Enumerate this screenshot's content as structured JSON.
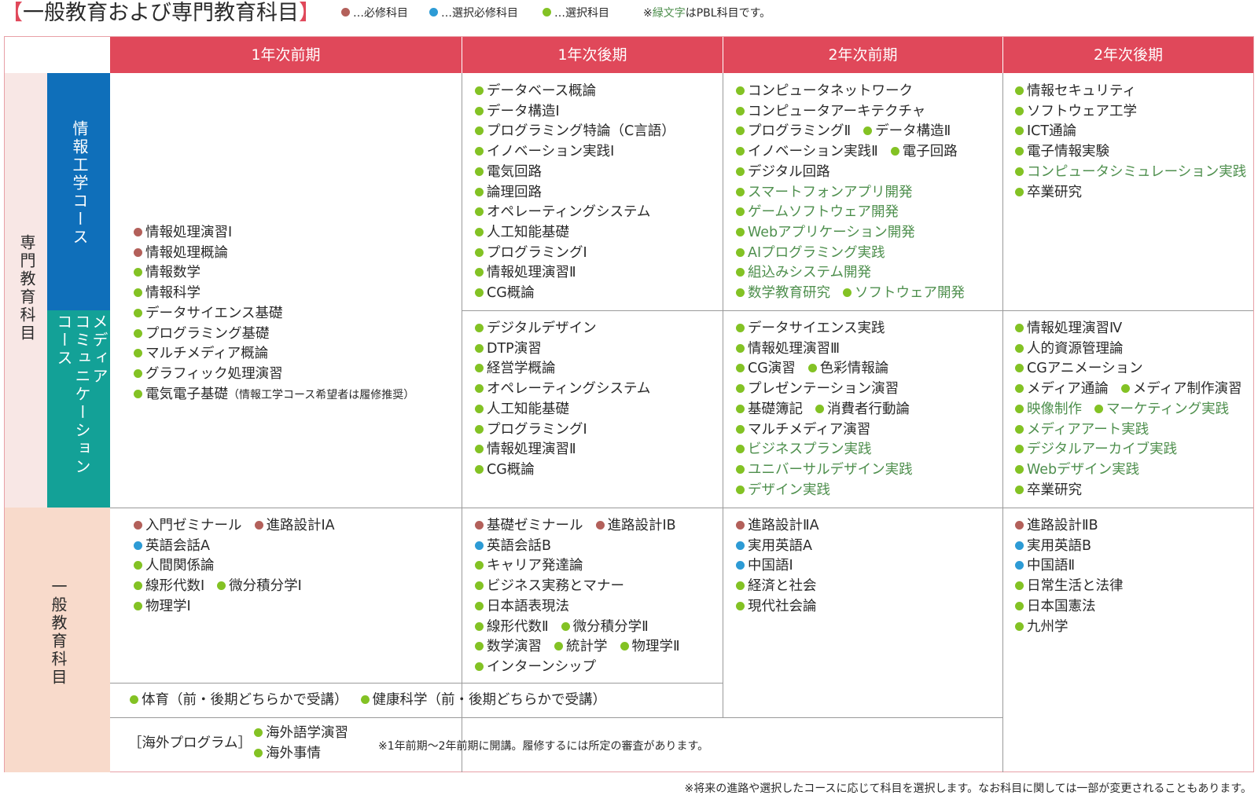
{
  "title": {
    "open": "【",
    "text": "一般教育および専門教育科目",
    "close": "】"
  },
  "legend": {
    "required": "…必修科目",
    "elective_required": "…選択必修科目",
    "elective": "…選択科目",
    "note_prefix": "※",
    "note_green": "緑文字",
    "note_suffix": "はPBL科目です。"
  },
  "colors": {
    "header": "#e0485a",
    "required": "#b3605a",
    "elective_required": "#2d9bd5",
    "elective": "#83c224",
    "pbl_text": "#4e8f4d",
    "info_course": "#0f6fba",
    "media_course": "#13a197"
  },
  "headers": [
    "1年次前期",
    "1年次後期",
    "2年次前期",
    "2年次後期"
  ],
  "row_labels": {
    "professional": "専門教育科目",
    "general": "一般教育科目",
    "info_course": "情報工学コース",
    "media_course_1": "メディア",
    "media_course_2": "コミュニケーション",
    "media_course_3": "コース"
  },
  "professional_common_1a": [
    [
      {
        "t": "情報処理演習Ⅰ",
        "c": "r"
      }
    ],
    [
      {
        "t": "情報処理概論",
        "c": "r"
      }
    ],
    [
      {
        "t": "情報数学",
        "c": "g"
      }
    ],
    [
      {
        "t": "情報科学",
        "c": "g"
      }
    ],
    [
      {
        "t": "データサイエンス基礎",
        "c": "g"
      }
    ],
    [
      {
        "t": "プログラミング基礎",
        "c": "g"
      }
    ],
    [
      {
        "t": "マルチメディア概論",
        "c": "g"
      }
    ],
    [
      {
        "t": "グラフィック処理演習",
        "c": "g"
      }
    ],
    [
      {
        "t": "電気電子基礎",
        "c": "g",
        "s": "（情報工学コース希望者は履修推奨）"
      }
    ]
  ],
  "info_1b": [
    [
      {
        "t": "データベース概論",
        "c": "g"
      }
    ],
    [
      {
        "t": "データ構造Ⅰ",
        "c": "g"
      }
    ],
    [
      {
        "t": "プログラミング特論（C言語）",
        "c": "g"
      }
    ],
    [
      {
        "t": "イノベーション実践Ⅰ",
        "c": "g"
      }
    ],
    [
      {
        "t": "電気回路",
        "c": "g"
      }
    ],
    [
      {
        "t": "論理回路",
        "c": "g"
      }
    ],
    [
      {
        "t": "オペレーティングシステム",
        "c": "g"
      }
    ],
    [
      {
        "t": "人工知能基礎",
        "c": "g"
      }
    ],
    [
      {
        "t": "プログラミングⅠ",
        "c": "g"
      }
    ],
    [
      {
        "t": "情報処理演習Ⅱ",
        "c": "g"
      }
    ],
    [
      {
        "t": "CG概論",
        "c": "g"
      }
    ]
  ],
  "info_2a": [
    [
      {
        "t": "コンピュータネットワーク",
        "c": "g"
      }
    ],
    [
      {
        "t": "コンピュータアーキテクチャ",
        "c": "g"
      }
    ],
    [
      {
        "t": "プログラミングⅡ",
        "c": "g"
      },
      {
        "t": "データ構造Ⅱ",
        "c": "g"
      }
    ],
    [
      {
        "t": "イノベーション実践Ⅱ",
        "c": "g"
      },
      {
        "t": "電子回路",
        "c": "g"
      }
    ],
    [
      {
        "t": "デジタル回路",
        "c": "g"
      }
    ],
    [
      {
        "t": "スマートフォンアプリ開発",
        "c": "g",
        "p": true
      }
    ],
    [
      {
        "t": "ゲームソフトウェア開発",
        "c": "g",
        "p": true
      }
    ],
    [
      {
        "t": "Webアプリケーション開発",
        "c": "g",
        "p": true
      }
    ],
    [
      {
        "t": "AIプログラミング実践",
        "c": "g",
        "p": true
      }
    ],
    [
      {
        "t": "組込みシステム開発",
        "c": "g",
        "p": true
      }
    ],
    [
      {
        "t": "数学教育研究",
        "c": "g",
        "p": true
      },
      {
        "t": "ソフトウェア開発",
        "c": "g",
        "p": true
      }
    ]
  ],
  "info_2b": [
    [
      {
        "t": "情報セキュリティ",
        "c": "g"
      }
    ],
    [
      {
        "t": "ソフトウェア工学",
        "c": "g"
      }
    ],
    [
      {
        "t": "ICT通論",
        "c": "g"
      }
    ],
    [
      {
        "t": "電子情報実験",
        "c": "g"
      }
    ],
    [
      {
        "t": "コンピュータシミュレーション実践",
        "c": "g",
        "p": true
      }
    ],
    [
      {
        "t": "卒業研究",
        "c": "g"
      }
    ]
  ],
  "media_1b": [
    [
      {
        "t": "デジタルデザイン",
        "c": "g"
      }
    ],
    [
      {
        "t": "DTP演習",
        "c": "g"
      }
    ],
    [
      {
        "t": "経営学概論",
        "c": "g"
      }
    ],
    [
      {
        "t": "オペレーティングシステム",
        "c": "g"
      }
    ],
    [
      {
        "t": "人工知能基礎",
        "c": "g"
      }
    ],
    [
      {
        "t": "プログラミングⅠ",
        "c": "g"
      }
    ],
    [
      {
        "t": "情報処理演習Ⅱ",
        "c": "g"
      }
    ],
    [
      {
        "t": "CG概論",
        "c": "g"
      }
    ]
  ],
  "media_2a": [
    [
      {
        "t": "データサイエンス実践",
        "c": "g"
      }
    ],
    [
      {
        "t": "情報処理演習Ⅲ",
        "c": "g"
      }
    ],
    [
      {
        "t": "CG演習",
        "c": "g"
      },
      {
        "t": "色彩情報論",
        "c": "g"
      }
    ],
    [
      {
        "t": "プレゼンテーション演習",
        "c": "g"
      }
    ],
    [
      {
        "t": "基礎簿記",
        "c": "g"
      },
      {
        "t": "消費者行動論",
        "c": "g"
      }
    ],
    [
      {
        "t": "マルチメディア演習",
        "c": "g"
      }
    ],
    [
      {
        "t": "ビジネスプラン実践",
        "c": "g",
        "p": true
      }
    ],
    [
      {
        "t": "ユニバーサルデザイン実践",
        "c": "g",
        "p": true
      }
    ],
    [
      {
        "t": "デザイン実践",
        "c": "g",
        "p": true
      }
    ]
  ],
  "media_2b": [
    [
      {
        "t": "情報処理演習Ⅳ",
        "c": "g"
      }
    ],
    [
      {
        "t": "人的資源管理論",
        "c": "g"
      }
    ],
    [
      {
        "t": "CGアニメーション",
        "c": "g"
      }
    ],
    [
      {
        "t": "メディア通論",
        "c": "g"
      },
      {
        "t": "メディア制作演習",
        "c": "g"
      }
    ],
    [
      {
        "t": "映像制作",
        "c": "g",
        "p": true
      },
      {
        "t": "マーケティング実践",
        "c": "g",
        "p": true
      }
    ],
    [
      {
        "t": "メディアアート実践",
        "c": "g",
        "p": true
      }
    ],
    [
      {
        "t": "デジタルアーカイブ実践",
        "c": "g",
        "p": true
      }
    ],
    [
      {
        "t": "Webデザイン実践",
        "c": "g",
        "p": true
      }
    ],
    [
      {
        "t": "卒業研究",
        "c": "g"
      }
    ]
  ],
  "general_1a": [
    [
      {
        "t": "入門ゼミナール",
        "c": "r"
      },
      {
        "t": "進路設計ⅠA",
        "c": "r"
      }
    ],
    [
      {
        "t": "英語会話A",
        "c": "b"
      }
    ],
    [
      {
        "t": "人間関係論",
        "c": "g"
      }
    ],
    [
      {
        "t": "線形代数Ⅰ",
        "c": "g"
      },
      {
        "t": "微分積分学Ⅰ",
        "c": "g"
      }
    ],
    [
      {
        "t": "物理学Ⅰ",
        "c": "g"
      }
    ]
  ],
  "general_1b": [
    [
      {
        "t": "基礎ゼミナール",
        "c": "r"
      },
      {
        "t": "進路設計ⅠB",
        "c": "r"
      }
    ],
    [
      {
        "t": "英語会話B",
        "c": "b"
      }
    ],
    [
      {
        "t": "キャリア発達論",
        "c": "g"
      }
    ],
    [
      {
        "t": "ビジネス実務とマナー",
        "c": "g"
      }
    ],
    [
      {
        "t": "日本語表現法",
        "c": "g"
      }
    ],
    [
      {
        "t": "線形代数Ⅱ",
        "c": "g"
      },
      {
        "t": "微分積分学Ⅱ",
        "c": "g"
      }
    ],
    [
      {
        "t": "数学演習",
        "c": "g"
      },
      {
        "t": "統計学",
        "c": "g"
      },
      {
        "t": "物理学Ⅱ",
        "c": "g"
      }
    ],
    [
      {
        "t": "インターンシップ",
        "c": "g"
      }
    ]
  ],
  "general_2a": [
    [
      {
        "t": "進路設計ⅡA",
        "c": "r"
      }
    ],
    [
      {
        "t": "実用英語A",
        "c": "b"
      }
    ],
    [
      {
        "t": "中国語Ⅰ",
        "c": "b"
      }
    ],
    [
      {
        "t": "経済と社会",
        "c": "g"
      }
    ],
    [
      {
        "t": "現代社会論",
        "c": "g"
      }
    ]
  ],
  "general_2b": [
    [
      {
        "t": "進路設計ⅡB",
        "c": "r"
      }
    ],
    [
      {
        "t": "実用英語B",
        "c": "b"
      }
    ],
    [
      {
        "t": "中国語Ⅱ",
        "c": "b"
      }
    ],
    [
      {
        "t": "日常生活と法律",
        "c": "g"
      }
    ],
    [
      {
        "t": "日本国憲法",
        "c": "g"
      }
    ],
    [
      {
        "t": "九州学",
        "c": "g"
      }
    ]
  ],
  "pe_row": [
    [
      {
        "t": "体育（前・後期どちらかで受講）",
        "c": "g"
      },
      {
        "t": "健康科学（前・後期どちらかで受講）",
        "c": "g"
      }
    ]
  ],
  "overseas": {
    "label": "［海外プログラム］",
    "items": [
      [
        {
          "t": "海外語学演習",
          "c": "g"
        }
      ],
      [
        {
          "t": "海外事情",
          "c": "g"
        }
      ]
    ],
    "note": "※1年前期〜2年前期に開講。履修するには所定の審査があります。"
  },
  "footer_note": "※将来の進路や選択したコースに応じて科目を選択します。なお科目に関しては一部が変更されることもあります。"
}
